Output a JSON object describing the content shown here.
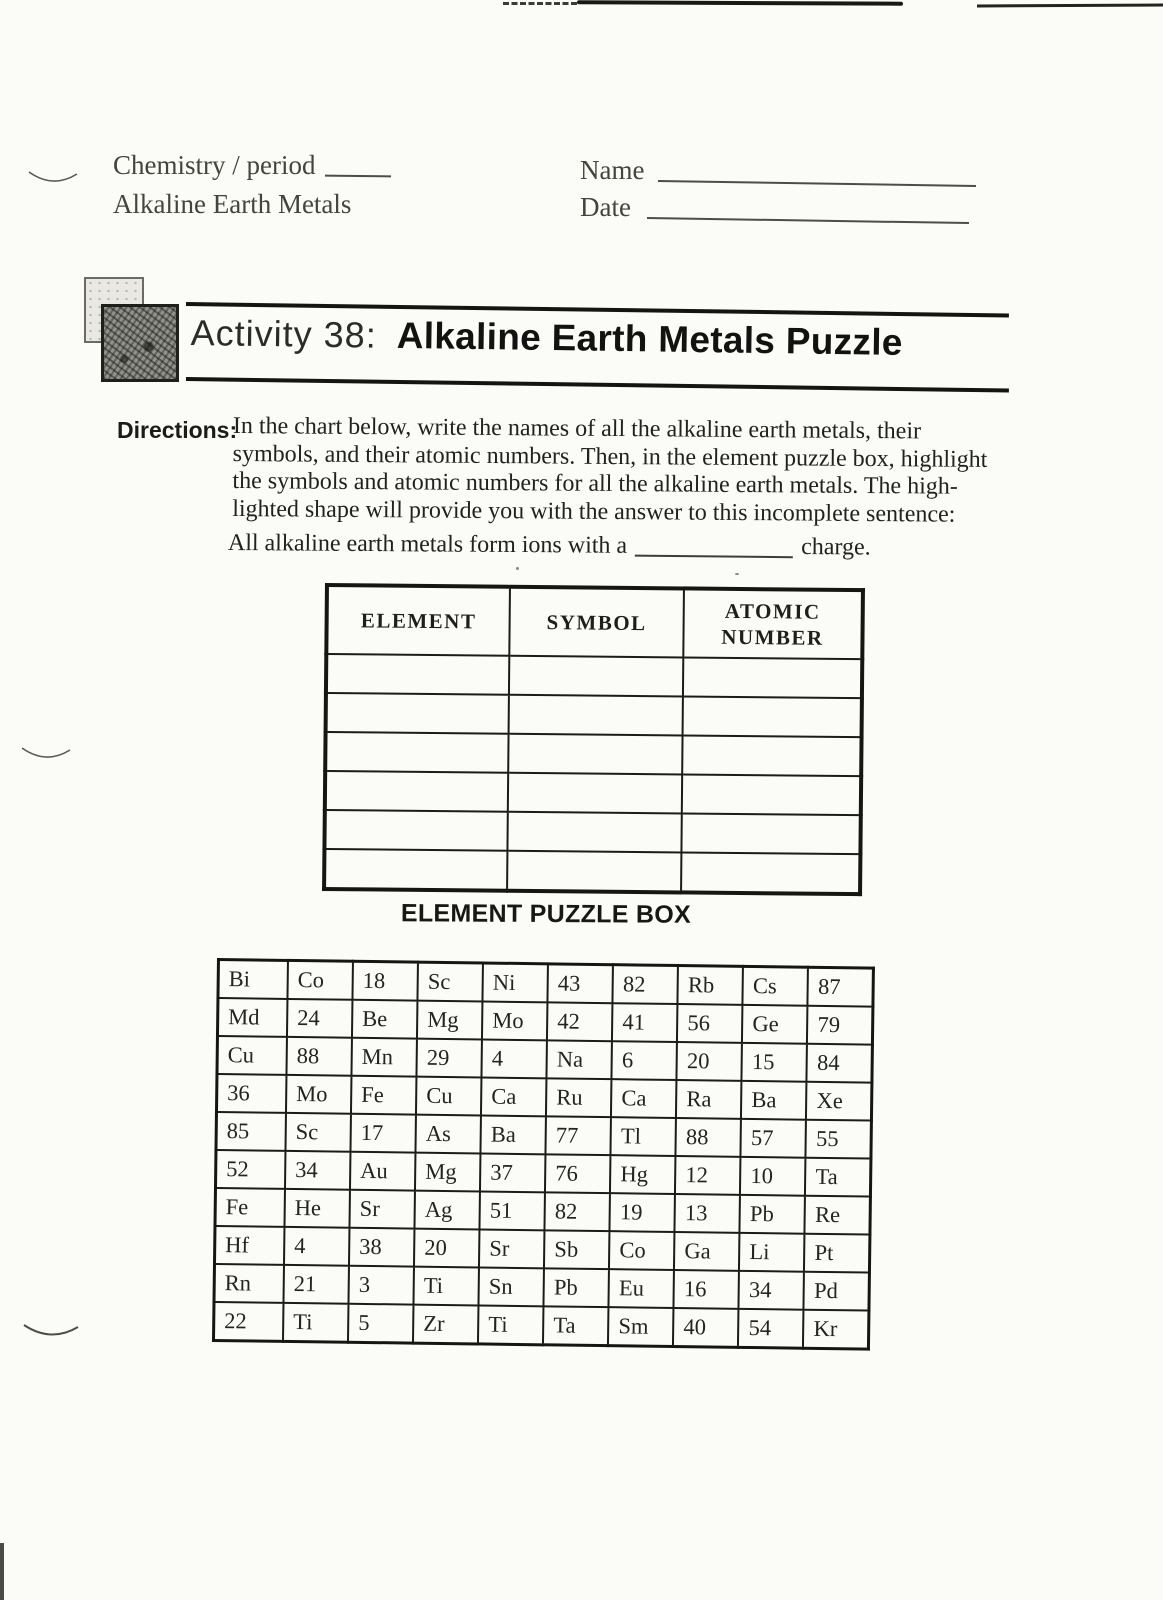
{
  "scan": {
    "header": {
      "course_label": "Chemistry / period",
      "subject_line": "Alkaline Earth Metals",
      "name_label": "Name",
      "date_label": "Date"
    },
    "activity": {
      "number_label": "Activity 38:",
      "title": "Alkaline Earth Metals Puzzle"
    },
    "directions": {
      "label": "Directions:",
      "lines": [
        "In the chart below, write the names of all the alkaline earth metals, their",
        "symbols, and their atomic numbers. Then, in the element puzzle box, highlight",
        "the symbols and atomic numbers for all the alkaline earth metals. The high-",
        "lighted shape will provide you with the answer to this incomplete sentence:"
      ],
      "fill_in_prefix": "All alkaline earth metals form ions with a",
      "fill_in_suffix": "charge."
    },
    "element_table": {
      "headers": [
        "ELEMENT",
        "SYMBOL",
        "ATOMIC NUMBER"
      ],
      "empty_row_count": 6
    },
    "puzzle_box": {
      "title": "ELEMENT PUZZLE BOX",
      "columns": 10,
      "grid": [
        [
          "Bi",
          "Co",
          "18",
          "Sc",
          "Ni",
          "43",
          "82",
          "Rb",
          "Cs",
          "87"
        ],
        [
          "Md",
          "24",
          "Be",
          "Mg",
          "Mo",
          "42",
          "41",
          "56",
          "Ge",
          "79"
        ],
        [
          "Cu",
          "88",
          "Mn",
          "29",
          "4",
          "Na",
          "6",
          "20",
          "15",
          "84"
        ],
        [
          "36",
          "Mo",
          "Fe",
          "Cu",
          "Ca",
          "Ru",
          "Ca",
          "Ra",
          "Ba",
          "Xe"
        ],
        [
          "85",
          "Sc",
          "17",
          "As",
          "Ba",
          "77",
          "Tl",
          "88",
          "57",
          "55"
        ],
        [
          "52",
          "34",
          "Au",
          "Mg",
          "37",
          "76",
          "Hg",
          "12",
          "10",
          "Ta"
        ],
        [
          "Fe",
          "He",
          "Sr",
          "Ag",
          "51",
          "82",
          "19",
          "13",
          "Pb",
          "Re"
        ],
        [
          "Hf",
          "4",
          "38",
          "20",
          "Sr",
          "Sb",
          "Co",
          "Ga",
          "Li",
          "Pt"
        ],
        [
          "Rn",
          "21",
          "3",
          "Ti",
          "Sn",
          "Pb",
          "Eu",
          "16",
          "34",
          "Pd"
        ],
        [
          "22",
          "Ti",
          "5",
          "Zr",
          "Ti",
          "Ta",
          "Sm",
          "40",
          "54",
          "Kr"
        ]
      ]
    },
    "colors": {
      "ink": "#23231f",
      "border": "#1b1b19",
      "paper": "#fbfbf8"
    }
  }
}
